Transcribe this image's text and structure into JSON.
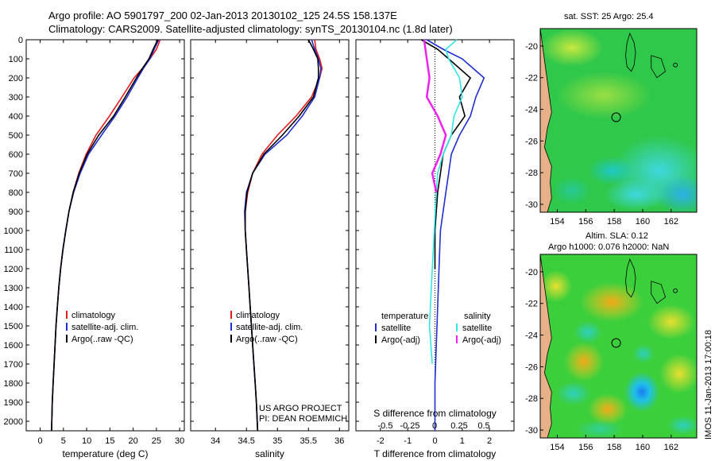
{
  "header": {
    "title": "Argo profile: AO 5901797_200 02-Jan-2013 20130102_125 24.5S 158.137E",
    "subtitle": "Climatology: CARS2009. Satellite-adjusted climatology: synTS_20130104.nc (1.8d later)"
  },
  "colors": {
    "climatology": "#e41a1c",
    "satellite": "#1f2fd0",
    "argo": "#000000",
    "sat_salinity": "#33e6e6",
    "argo_salinity": "#ee22ee",
    "land": "#e8b088"
  },
  "chart_data": [
    {
      "type": "line",
      "xlabel": "temperature (deg C)",
      "ylabel": "",
      "xlim": [
        -3,
        31
      ],
      "ylim": [
        2050,
        0
      ],
      "xticks": [
        0,
        5,
        10,
        15,
        20,
        25,
        30
      ],
      "yticks": [
        0,
        100,
        200,
        300,
        400,
        500,
        600,
        700,
        800,
        900,
        1000,
        1100,
        1200,
        1300,
        1400,
        1500,
        1600,
        1700,
        1800,
        1900,
        2000
      ],
      "legend": [
        "climatology",
        "satellite-adj. clim.",
        "Argo(..raw -QC)"
      ],
      "series": [
        {
          "name": "climatology",
          "color": "#e41a1c",
          "x": [
            25.8,
            25.0,
            23.6,
            22.0,
            20.2,
            17.6,
            14.9,
            12.0,
            9.9,
            8.3,
            7.1,
            6.2,
            5.5,
            4.9,
            4.4,
            4.0,
            3.7,
            3.4,
            3.2,
            3.0,
            2.8,
            2.6,
            2.45
          ],
          "y": [
            0,
            50,
            100,
            150,
            200,
            300,
            400,
            500,
            600,
            700,
            800,
            900,
            1000,
            1100,
            1200,
            1300,
            1400,
            1500,
            1600,
            1700,
            1800,
            1900,
            2050
          ]
        },
        {
          "name": "satellite-adj. clim.",
          "color": "#1f2fd0",
          "x": [
            25.5,
            24.5,
            23.6,
            22.2,
            21.0,
            18.7,
            16.1,
            13.2,
            10.4,
            8.6,
            7.2,
            6.2,
            5.5,
            4.9,
            4.4,
            4.0,
            3.7,
            3.4,
            3.2,
            3.0,
            2.8,
            2.6,
            2.45
          ],
          "y": [
            0,
            50,
            100,
            150,
            200,
            300,
            400,
            500,
            600,
            700,
            800,
            900,
            1000,
            1100,
            1200,
            1300,
            1400,
            1500,
            1600,
            1700,
            1800,
            1900,
            2050
          ]
        },
        {
          "name": "Argo(..raw -QC)",
          "color": "#000000",
          "x": [
            25.3,
            24.3,
            23.4,
            22.0,
            20.7,
            18.3,
            15.8,
            12.6,
            10.1,
            8.4,
            7.1,
            6.2,
            5.5,
            4.9,
            4.4,
            4.0,
            3.7,
            3.4,
            3.2,
            3.0,
            2.8,
            2.6,
            2.45
          ],
          "y": [
            0,
            50,
            100,
            150,
            200,
            300,
            400,
            500,
            600,
            700,
            800,
            900,
            1000,
            1100,
            1200,
            1300,
            1400,
            1500,
            1600,
            1700,
            1800,
            1900,
            2050
          ]
        }
      ]
    },
    {
      "type": "line",
      "xlabel": "salinity",
      "ylabel": "",
      "xlim": [
        33.6,
        36.15
      ],
      "ylim": [
        2050,
        0
      ],
      "xticks": [
        34,
        34.5,
        35,
        35.5,
        36
      ],
      "legend": [
        "climatology",
        "satellite-adj. clim.",
        "Argo(..raw -QC)"
      ],
      "annotation": [
        "US ARGO PROJECT",
        "PI: DEAN ROEMMICH"
      ],
      "series": [
        {
          "name": "climatology",
          "color": "#e41a1c",
          "x": [
            35.6,
            35.62,
            35.68,
            35.72,
            35.68,
            35.55,
            35.3,
            35.0,
            34.75,
            34.6,
            34.52,
            34.48,
            34.48,
            34.5,
            34.52,
            34.54,
            34.56,
            34.58,
            34.6,
            34.62,
            34.64,
            34.66,
            34.68
          ],
          "y": [
            0,
            50,
            100,
            150,
            200,
            300,
            400,
            500,
            600,
            700,
            800,
            900,
            1000,
            1100,
            1200,
            1300,
            1400,
            1500,
            1600,
            1700,
            1800,
            1900,
            2050
          ]
        },
        {
          "name": "satellite-adj. clim.",
          "color": "#1f2fd0",
          "x": [
            35.55,
            35.6,
            35.66,
            35.7,
            35.68,
            35.6,
            35.4,
            35.15,
            34.8,
            34.6,
            34.5,
            34.47,
            34.48,
            34.5,
            34.52,
            34.54,
            34.56,
            34.58,
            34.6,
            34.62,
            34.64,
            34.66,
            34.68
          ],
          "y": [
            0,
            50,
            100,
            150,
            200,
            300,
            400,
            500,
            600,
            700,
            800,
            900,
            1000,
            1100,
            1200,
            1300,
            1400,
            1500,
            1600,
            1700,
            1800,
            1900,
            2050
          ]
        },
        {
          "name": "Argo(..raw -QC)",
          "color": "#000000",
          "x": [
            35.5,
            35.58,
            35.65,
            35.66,
            35.66,
            35.58,
            35.35,
            35.08,
            34.78,
            34.6,
            34.51,
            34.48,
            34.48,
            34.5,
            34.52,
            34.54,
            34.56,
            34.58,
            34.6,
            34.62,
            34.64,
            34.66,
            34.68
          ],
          "y": [
            0,
            50,
            100,
            150,
            200,
            300,
            400,
            500,
            600,
            700,
            800,
            900,
            1000,
            1100,
            1200,
            1300,
            1400,
            1500,
            1600,
            1700,
            1800,
            1900,
            2050
          ]
        }
      ]
    },
    {
      "type": "line",
      "xlabel_top": "S difference from climatology",
      "xticklabels_top": [
        "-0.5",
        "-0.25",
        "0",
        "0.25",
        "0.5"
      ],
      "xlabel": "T difference from climatology",
      "xlim": [
        -2.9,
        2.9
      ],
      "ylim": [
        2050,
        0
      ],
      "xticks": [
        -2,
        -1,
        0,
        1,
        2
      ],
      "legend_left_title": "temperature",
      "legend_left": [
        "satellite",
        "Argo(-adj)"
      ],
      "legend_right_title": "salinity",
      "legend_right": [
        "satellite",
        "Argo(-adj)"
      ],
      "series": [
        {
          "name": "temperature satellite",
          "color": "#1f2fd0",
          "x": [
            -0.3,
            0.3,
            1.0,
            1.8,
            1.5,
            1.3,
            0.9,
            0.6,
            0.5,
            0.4,
            0.3,
            0.2,
            0.15,
            0.1,
            0.05,
            0.0,
            0.0
          ],
          "y": [
            0,
            50,
            100,
            200,
            300,
            400,
            500,
            600,
            700,
            800,
            900,
            1000,
            1200,
            1400,
            1600,
            1800,
            2050
          ]
        },
        {
          "name": "temperature Argo(-adj)",
          "color": "#000000",
          "x": [
            -0.5,
            0.1,
            0.5,
            1.3,
            0.9,
            1.1,
            0.6,
            0.3,
            0.2,
            0.1,
            0.05,
            0.0,
            0.0
          ],
          "y": [
            0,
            50,
            100,
            200,
            300,
            400,
            500,
            600,
            700,
            800,
            900,
            1000,
            1200
          ]
        },
        {
          "name": "salinity satellite",
          "color": "#33e6e6",
          "x": [
            0.8,
            0.4,
            0.5,
            0.9,
            1.0,
            0.7,
            0.6,
            0.3,
            0.1,
            0.05,
            -0.1,
            -0.2,
            -0.1
          ],
          "y": [
            0,
            50,
            100,
            200,
            300,
            400,
            500,
            600,
            700,
            800,
            1200,
            1500,
            1700
          ]
        },
        {
          "name": "salinity Argo(-adj)",
          "color": "#ee22ee",
          "x": [
            -0.4,
            -0.3,
            -0.2,
            -0.3,
            0.1,
            0.4,
            0.2,
            -0.1,
            0.05
          ],
          "y": [
            0,
            100,
            200,
            300,
            400,
            500,
            600,
            700,
            800
          ]
        }
      ]
    },
    {
      "type": "heatmap",
      "title": "sat. SST: 25 Argo: 25.4",
      "xlim": [
        152.8,
        163.8
      ],
      "ylim": [
        -30.5,
        -18.9
      ],
      "xticks": [
        154,
        156,
        158,
        160,
        162
      ],
      "yticks": [
        -20,
        -22,
        -24,
        -26,
        -28,
        -30
      ],
      "marker": {
        "lon": 158.137,
        "lat": -24.5
      }
    },
    {
      "type": "heatmap",
      "title": "Altim. SLA: 0.12",
      "subtitle": "Argo h1000: 0.076 h2000: NaN",
      "xlim": [
        152.8,
        163.8
      ],
      "ylim": [
        -30.5,
        -18.9
      ],
      "xticks": [
        154,
        156,
        158,
        160,
        162
      ],
      "yticks": [
        -20,
        -22,
        -24,
        -26,
        -28,
        -30
      ],
      "marker": {
        "lon": 158.137,
        "lat": -24.5
      }
    }
  ],
  "footer": {
    "stamp": "IMOS 11-Jan-2013 17:00:18"
  }
}
